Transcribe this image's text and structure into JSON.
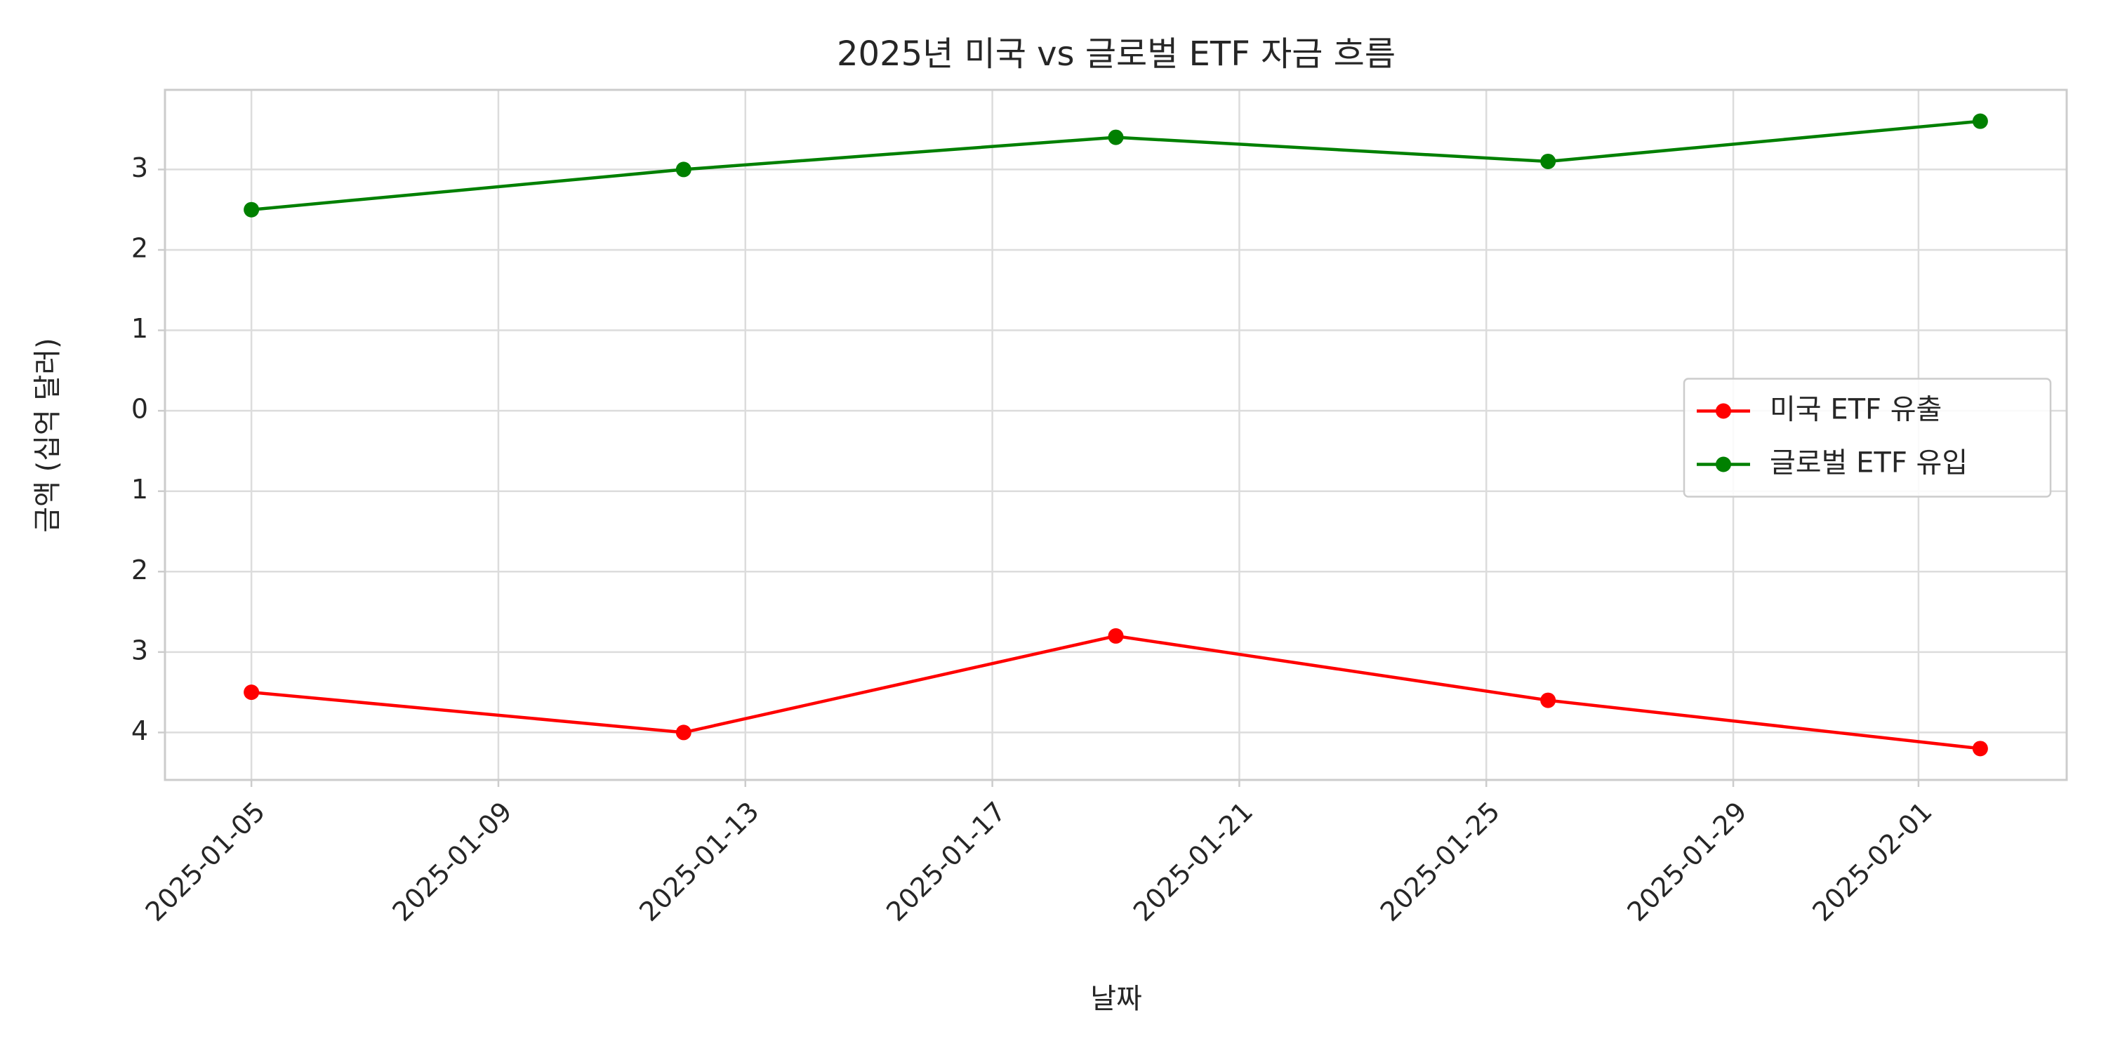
{
  "chart_data": {
    "type": "line",
    "title": "2025년 미국 vs 글로벌 ETF 자금 흐름",
    "x_label": "날짜",
    "y_label": "금액 (십억 달러)",
    "x": [
      "2025-01-05",
      "2025-01-12",
      "2025-01-19",
      "2025-01-26",
      "2025-02-02"
    ],
    "series": [
      {
        "name": "미국 ETF 유출",
        "color": "#ff0000",
        "values": [
          -3.5,
          -4.0,
          -2.8,
          -3.6,
          -4.2
        ]
      },
      {
        "name": "글로벌 ETF 유입",
        "color": "#008000",
        "values": [
          2.5,
          3.0,
          3.4,
          3.1,
          3.6
        ]
      }
    ],
    "xlim": [
      "2025-01-03T14:24Z",
      "2025-02-03T09:36Z"
    ],
    "xticks": [
      "2025-01-05",
      "2025-01-09",
      "2025-01-13",
      "2025-01-17",
      "2025-01-21",
      "2025-01-25",
      "2025-01-29",
      "2025-02-01"
    ],
    "ylim": [
      -4.59,
      3.99
    ],
    "yticks": [
      3,
      2,
      1,
      0,
      {
        "value": -1,
        "label": "1"
      },
      {
        "value": -2,
        "label": "2"
      },
      {
        "value": -3,
        "label": "3"
      },
      {
        "value": -4,
        "label": "4"
      }
    ],
    "grid": true,
    "legend": "center right"
  }
}
